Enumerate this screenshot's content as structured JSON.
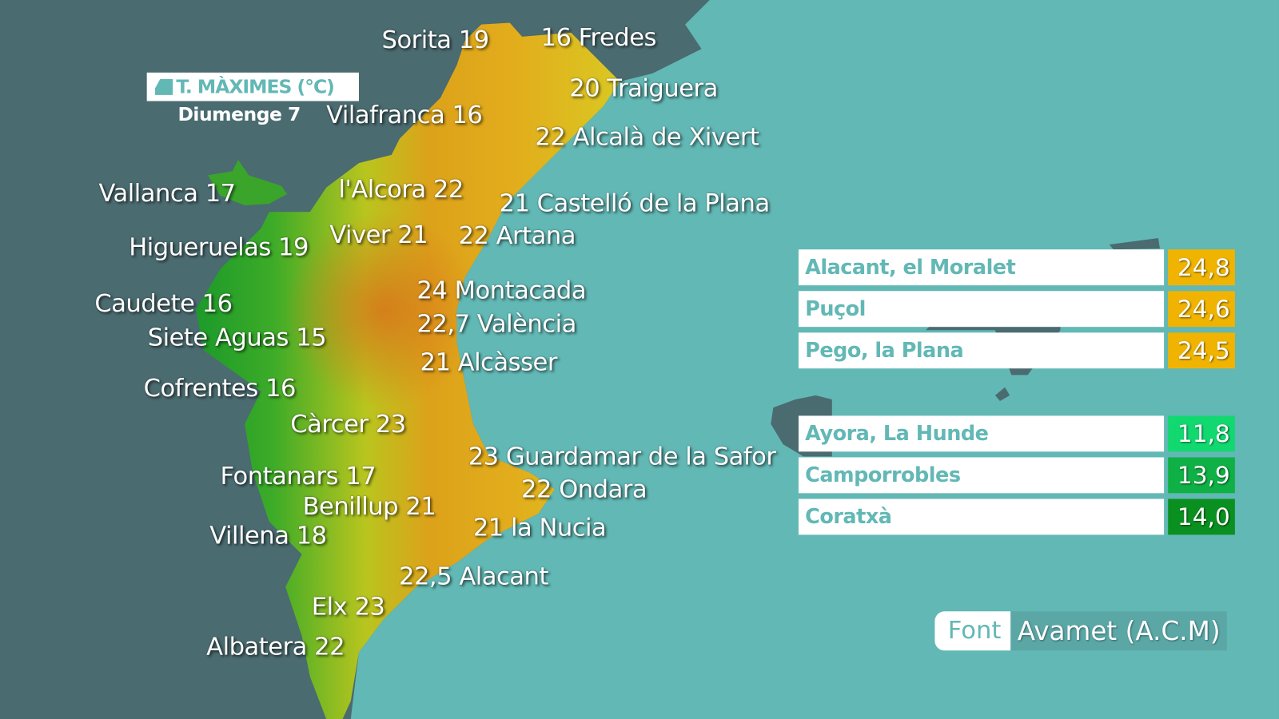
{
  "title": "T. MÀXIMES (°C)",
  "date": "Diumenge 7",
  "colors": {
    "sea": "#62b8b5",
    "land_outside": "#4a6b70",
    "label_accent": "#62b8b5",
    "hot": "#f0b400",
    "cold_1": "#12d870",
    "cold_2": "#0fb045",
    "cold_3": "#0a9020"
  },
  "stations": [
    "Sorita 19",
    "16 Fredes",
    "20 Traiguera",
    "Vilafranca 16",
    "22 Alcalà de Xivert",
    "Vallanca 17",
    "l'Alcora 22",
    "21 Castelló de la Plana",
    "Viver 21",
    "22 Artana",
    "Higueruelas 19",
    "24 Montacada",
    "Caudete 16",
    "22,7 València",
    "Siete Aguas 15",
    "21 Alcàsser",
    "Cofrentes 16",
    "Càrcer 23",
    "23 Guardamar de la Safor",
    "Fontanars 17",
    "22 Ondara",
    "Benillup 21",
    "21 la Nucia",
    "Villena 18",
    "22,5 Alacant",
    "Elx 23",
    "Albatera 22"
  ],
  "highest": [
    {
      "name": "Alacant, el Moralet",
      "value": "24,8"
    },
    {
      "name": "Puçol",
      "value": "24,6"
    },
    {
      "name": "Pego, la Plana",
      "value": "24,5"
    }
  ],
  "lowest": [
    {
      "name": "Ayora, La Hunde",
      "value": "11,8"
    },
    {
      "name": "Camporrobles",
      "value": "13,9"
    },
    {
      "name": "Coratxà",
      "value": "14,0"
    }
  ],
  "source": {
    "label": "Font",
    "value": "Avamet (A.C.M)"
  }
}
